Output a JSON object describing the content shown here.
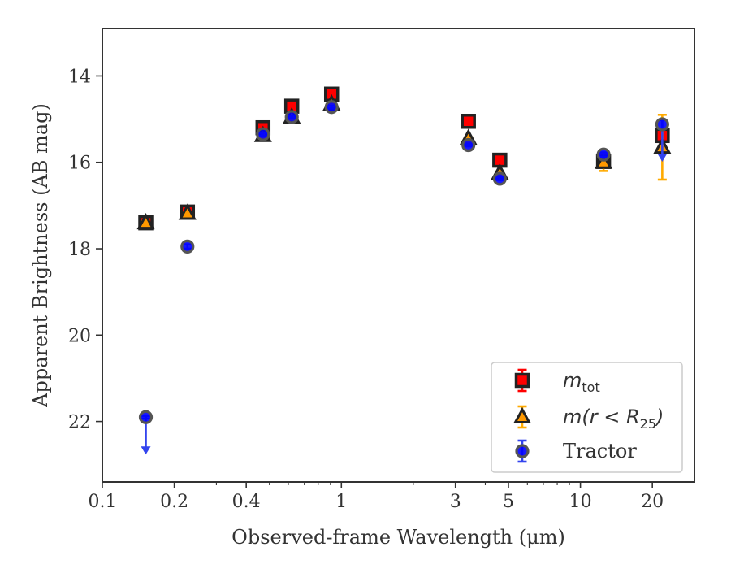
{
  "chart_data": {
    "type": "scatter",
    "xlabel": "Observed-frame Wavelength (μm)",
    "ylabel": "Apparent Brightness (AB mag)",
    "xscale": "log",
    "xlim": [
      0.1,
      30
    ],
    "ylim": [
      23.4,
      12.9
    ],
    "y_inverted": true,
    "xticks": [
      0.1,
      0.2,
      0.4,
      1,
      3,
      5,
      10,
      20
    ],
    "xtick_labels": [
      "0.1",
      "0.2",
      "0.4",
      "1",
      "3",
      "5",
      "10",
      "20"
    ],
    "yticks": [
      14,
      16,
      18,
      20,
      22
    ],
    "ytick_labels": [
      "14",
      "16",
      "18",
      "20",
      "22"
    ],
    "grid": false,
    "legend_position": "bottom-right",
    "series": [
      {
        "name": "m_tot",
        "legend_main": "m",
        "legend_sub": "tot",
        "marker": "square",
        "fill": "#ff0000",
        "edge": "#222222",
        "errcolor": "#ff0000",
        "points": [
          {
            "x": 0.152,
            "y": 17.4,
            "yerr": 0.03
          },
          {
            "x": 0.227,
            "y": 17.15,
            "yerr": 0.03
          },
          {
            "x": 0.47,
            "y": 15.2,
            "yerr": 0.03
          },
          {
            "x": 0.62,
            "y": 14.7,
            "yerr": 0.03
          },
          {
            "x": 0.91,
            "y": 14.42,
            "yerr": 0.03
          },
          {
            "x": 3.4,
            "y": 15.05,
            "yerr": 0.03
          },
          {
            "x": 4.6,
            "y": 15.95,
            "yerr": 0.03
          },
          {
            "x": 12.5,
            "y": 15.98,
            "yerr": 0.05
          },
          {
            "x": 22.0,
            "y": 15.38,
            "yerr": 0.15
          }
        ]
      },
      {
        "name": "m(r<R25)",
        "legend_main": "m(r < R",
        "legend_sub": "25",
        "legend_tail": ")",
        "marker": "triangle",
        "fill": "#ff9900",
        "edge": "#222222",
        "errcolor": "#ffaa00",
        "points": [
          {
            "x": 0.152,
            "y": 17.4,
            "yerr": 0.03
          },
          {
            "x": 0.227,
            "y": 17.18,
            "yerr": 0.03
          },
          {
            "x": 0.47,
            "y": 15.38,
            "yerr": 0.03
          },
          {
            "x": 0.62,
            "y": 14.95,
            "yerr": 0.03
          },
          {
            "x": 0.91,
            "y": 14.65,
            "yerr": 0.03
          },
          {
            "x": 3.4,
            "y": 15.45,
            "yerr": 0.03
          },
          {
            "x": 4.6,
            "y": 16.25,
            "yerr": 0.03
          },
          {
            "x": 12.5,
            "y": 16.0,
            "yerr": 0.2
          },
          {
            "x": 22.0,
            "y": 15.65,
            "yerr": 0.75
          }
        ]
      },
      {
        "name": "Tractor",
        "legend_main": "Tractor",
        "marker": "circle",
        "fill": "#0000ff",
        "edge": "#555555",
        "errcolor": "#3344ee",
        "points": [
          {
            "x": 0.152,
            "y": 21.9,
            "yerr": 0.03,
            "upper_limit": true
          },
          {
            "x": 0.227,
            "y": 17.95,
            "yerr": 0.05
          },
          {
            "x": 0.47,
            "y": 15.35,
            "yerr": 0.03
          },
          {
            "x": 0.62,
            "y": 14.95,
            "yerr": 0.03
          },
          {
            "x": 0.91,
            "y": 14.72,
            "yerr": 0.03
          },
          {
            "x": 3.4,
            "y": 15.6,
            "yerr": 0.03
          },
          {
            "x": 4.6,
            "y": 16.38,
            "yerr": 0.03
          },
          {
            "x": 12.5,
            "y": 15.82,
            "yerr": 0.05
          },
          {
            "x": 22.0,
            "y": 15.12,
            "yerr": 0.1,
            "upper_limit": true
          }
        ]
      }
    ]
  }
}
